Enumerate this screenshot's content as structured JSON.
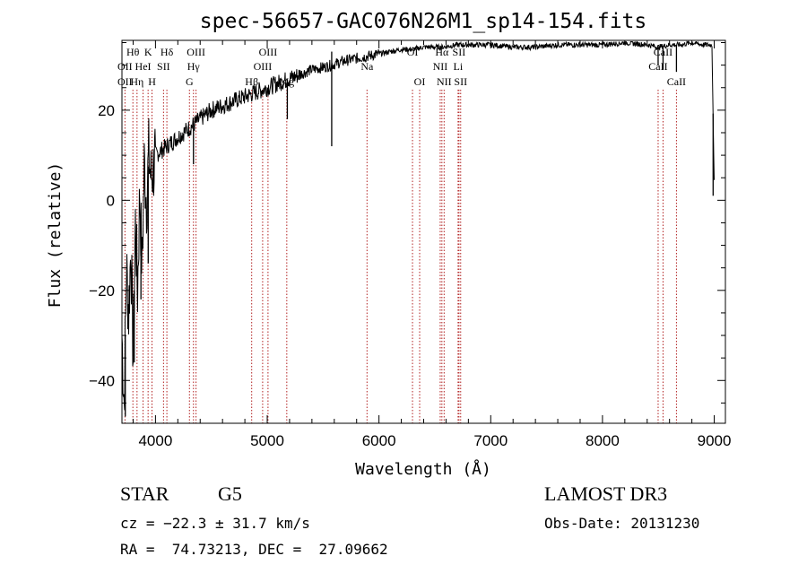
{
  "chart_data": {
    "type": "line",
    "title": "spec-56657-GAC076N26M1_sp14-154.fits",
    "xlabel": "Wavelength (Å)",
    "ylabel": "Flux (relative)",
    "xlim": [
      3700,
      9100
    ],
    "ylim": [
      -49.5,
      35.5
    ],
    "x_ticks": [
      4000,
      5000,
      6000,
      7000,
      8000,
      9000
    ],
    "x_tick_labels": [
      "4000",
      "5000",
      "6000",
      "7000",
      "8000",
      "9000"
    ],
    "y_ticks": [
      -40,
      -20,
      0,
      20
    ],
    "y_tick_labels": [
      "−40",
      "−20",
      "0",
      "20"
    ],
    "spectrum": {
      "name": "flux",
      "x": [
        3700,
        3720,
        3740,
        3760,
        3780,
        3800,
        3820,
        3840,
        3860,
        3880,
        3900,
        3920,
        3940,
        3960,
        3980,
        4000,
        4050,
        4100,
        4150,
        4200,
        4250,
        4300,
        4350,
        4400,
        4450,
        4500,
        4600,
        4700,
        4800,
        4900,
        5000,
        5100,
        5200,
        5300,
        5400,
        5500,
        5577,
        5700,
        5800,
        5900,
        6000,
        6100,
        6200,
        6300,
        6400,
        6500,
        6563,
        6700,
        6800,
        7000,
        7200,
        7400,
        7600,
        7800,
        8000,
        8200,
        8400,
        8500,
        8600,
        8700,
        8800,
        8900,
        8980,
        9000
      ],
      "y": [
        -30,
        -45,
        -15,
        -25,
        -10,
        -35,
        -5,
        -20,
        2,
        -15,
        8,
        0,
        10,
        5,
        7,
        10,
        11,
        12,
        13,
        14,
        15,
        16,
        17,
        18,
        19,
        20,
        21,
        22,
        23,
        24,
        25,
        26,
        27,
        28,
        29,
        29.5,
        30,
        31,
        31.5,
        32,
        32.5,
        33,
        33.5,
        33.5,
        34,
        34,
        34,
        34.5,
        34.5,
        34.5,
        34,
        34,
        34.5,
        34.5,
        34.5,
        35,
        34.5,
        34,
        34.5,
        34.5,
        35,
        34.5,
        34.5,
        4
      ]
    },
    "spikes": [
      {
        "x": 3730,
        "y": -48
      },
      {
        "x": 3810,
        "y": -36
      },
      {
        "x": 3870,
        "y": -22
      },
      {
        "x": 3935,
        "y": -14
      },
      {
        "x": 4340,
        "y": 8
      },
      {
        "x": 5180,
        "y": 18
      },
      {
        "x": 5577,
        "y": 12
      },
      {
        "x": 5577,
        "y": 33
      },
      {
        "x": 8498,
        "y": 30
      },
      {
        "x": 8542,
        "y": 29
      },
      {
        "x": 8662,
        "y": 28.5
      },
      {
        "x": 8990,
        "y": 1
      }
    ],
    "lines": [
      {
        "label": "Hθ",
        "x": 3798,
        "row": 1
      },
      {
        "label": "OII",
        "x": 3727,
        "row": 2
      },
      {
        "label": "OII",
        "x": 3727,
        "row": 3
      },
      {
        "label": "Hη",
        "x": 3835,
        "row": 3
      },
      {
        "label": "K",
        "x": 3934,
        "row": 1
      },
      {
        "label": "HeI",
        "x": 3889,
        "row": 2
      },
      {
        "label": "H",
        "x": 3969,
        "row": 3
      },
      {
        "label": "SII",
        "x": 4072,
        "row": 2
      },
      {
        "label": "Hδ",
        "x": 4102,
        "row": 1
      },
      {
        "label": "OIII",
        "x": 4363,
        "row": 1
      },
      {
        "label": "Hγ",
        "x": 4340,
        "row": 2
      },
      {
        "label": "G",
        "x": 4304,
        "row": 3
      },
      {
        "label": "Hβ",
        "x": 4861,
        "row": 3
      },
      {
        "label": "OIII",
        "x": 4959,
        "row": 2
      },
      {
        "label": "OIII",
        "x": 5007,
        "row": 1
      },
      {
        "label": "Mg",
        "x": 5175,
        "row": 3
      },
      {
        "label": "Na",
        "x": 5893,
        "row": 2
      },
      {
        "label": "OI",
        "x": 6300,
        "row": 1
      },
      {
        "label": "OI",
        "x": 6364,
        "row": 3
      },
      {
        "label": "Hα",
        "x": 6563,
        "row": 1
      },
      {
        "label": "NII",
        "x": 6548,
        "row": 2
      },
      {
        "label": "NII",
        "x": 6583,
        "row": 3
      },
      {
        "label": "SII",
        "x": 6716,
        "row": 1
      },
      {
        "label": "SII",
        "x": 6731,
        "row": 3
      },
      {
        "label": "Li",
        "x": 6708,
        "row": 2
      },
      {
        "label": "CaII",
        "x": 8498,
        "row": 2
      },
      {
        "label": "CaII",
        "x": 8542,
        "row": 1
      },
      {
        "label": "CaII",
        "x": 8662,
        "row": 3
      }
    ],
    "grid": false,
    "legend": "none"
  },
  "info": {
    "object_class": "STAR",
    "subclass": "G5",
    "survey": "LAMOST DR3",
    "redshift": "cz = −22.3 ± 31.7 km/s",
    "obs_date": "Obs-Date: 20131230",
    "coords": "RA =  74.73213, DEC =  27.09662"
  },
  "colors": {
    "line_marker": "#b22222",
    "spectrum": "#000000",
    "axes": "#000000"
  }
}
